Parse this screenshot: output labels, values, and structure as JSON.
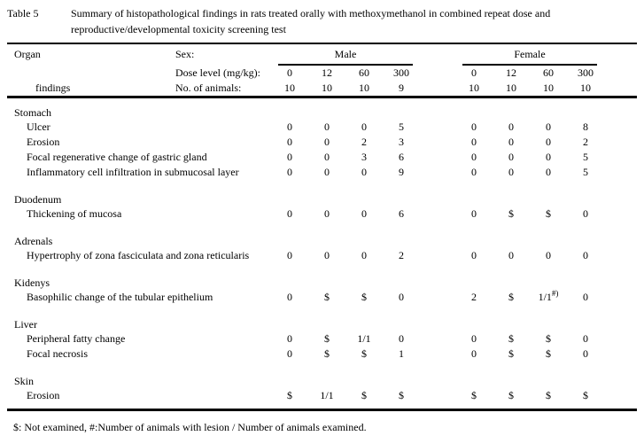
{
  "title": {
    "label": "Table 5",
    "caption_line1": "Summary of histopathological findings in rats treated orally with methoxymethanol in combined repeat dose and",
    "caption_line2": "reproductive/developmental toxicity screening test"
  },
  "header": {
    "organ_label": "Organ",
    "findings_label": "findings",
    "sex_label": "Sex:",
    "dose_label": "Dose level (mg/kg):",
    "animals_label": "No. of animals:",
    "groups": [
      {
        "name": "Male",
        "doses": [
          "0",
          "12",
          "60",
          "300"
        ],
        "n": [
          "10",
          "10",
          "10",
          "9"
        ]
      },
      {
        "name": "Female",
        "doses": [
          "0",
          "12",
          "60",
          "300"
        ],
        "n": [
          "10",
          "10",
          "10",
          "10"
        ]
      }
    ]
  },
  "sections": [
    {
      "organ": "Stomach",
      "rows": [
        {
          "finding": "Ulcer",
          "male": [
            "0",
            "0",
            "0",
            "5"
          ],
          "female": [
            "0",
            "0",
            "0",
            "8"
          ]
        },
        {
          "finding": "Erosion",
          "male": [
            "0",
            "0",
            "2",
            "3"
          ],
          "female": [
            "0",
            "0",
            "0",
            "2"
          ]
        },
        {
          "finding": "Focal regenerative change of gastric gland",
          "male": [
            "0",
            "0",
            "3",
            "6"
          ],
          "female": [
            "0",
            "0",
            "0",
            "5"
          ]
        },
        {
          "finding": "Inflammatory cell infiltration in submucosal layer",
          "male": [
            "0",
            "0",
            "0",
            "9"
          ],
          "female": [
            "0",
            "0",
            "0",
            "5"
          ]
        }
      ]
    },
    {
      "organ": "Duodenum",
      "rows": [
        {
          "finding": "Thickening of mucosa",
          "male": [
            "0",
            "0",
            "0",
            "6"
          ],
          "female": [
            "0",
            "$",
            "$",
            "0"
          ]
        }
      ]
    },
    {
      "organ": "Adrenals",
      "rows": [
        {
          "finding": "Hypertrophy of zona fasciculata and zona reticularis",
          "male": [
            "0",
            "0",
            "0",
            "2"
          ],
          "female": [
            "0",
            "0",
            "0",
            "0"
          ]
        }
      ]
    },
    {
      "organ": "Kidenys",
      "rows": [
        {
          "finding": "Basophilic change of the tubular epithelium",
          "male": [
            "0",
            "$",
            "$",
            "0"
          ],
          "female": [
            "2",
            "$",
            "1/1#)",
            "0"
          ]
        }
      ]
    },
    {
      "organ": "Liver",
      "rows": [
        {
          "finding": "Peripheral fatty change",
          "male": [
            "0",
            "$",
            "1/1",
            "0"
          ],
          "female": [
            "0",
            "$",
            "$",
            "0"
          ]
        },
        {
          "finding": "Focal necrosis",
          "male": [
            "0",
            "$",
            "$",
            "1"
          ],
          "female": [
            "0",
            "$",
            "$",
            "0"
          ]
        }
      ]
    },
    {
      "organ": "Skin",
      "rows": [
        {
          "finding": "Erosion",
          "male": [
            "$",
            "1/1",
            "$",
            "$"
          ],
          "female": [
            "$",
            "$",
            "$",
            "$"
          ]
        }
      ]
    }
  ],
  "footnote": "$: Not examined, #:Number of animals with lesion / Number of animals examined.",
  "colors": {
    "text": "#000000",
    "background": "#ffffff",
    "rule": "#000000"
  }
}
